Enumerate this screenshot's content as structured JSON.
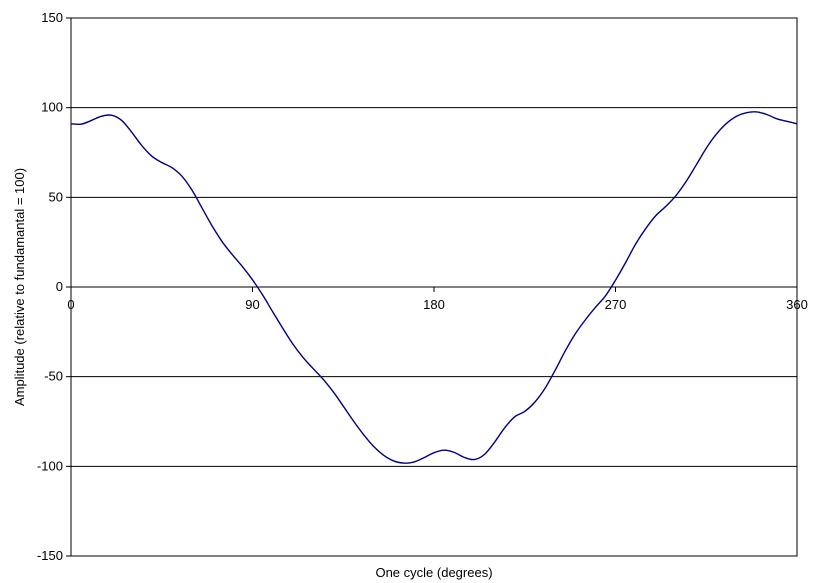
{
  "chart_data": {
    "type": "line",
    "title": "",
    "xlabel": "One cycle (degrees)",
    "ylabel": "Amplitude (relative to fundamantal = 100)",
    "xlim": [
      0,
      360
    ],
    "ylim": [
      -150,
      150
    ],
    "xticks": [
      0,
      90,
      180,
      270,
      360
    ],
    "yticks": [
      150,
      100,
      50,
      0,
      -50,
      -100,
      -150
    ],
    "grid": "horizontal",
    "legend": "none",
    "series": [
      {
        "color": "#000080",
        "x": [
          0,
          5,
          10,
          15,
          20,
          25,
          30,
          35,
          40,
          45,
          50,
          55,
          60,
          65,
          70,
          75,
          80,
          85,
          90,
          95,
          100,
          105,
          110,
          115,
          120,
          125,
          130,
          135,
          140,
          145,
          150,
          155,
          160,
          165,
          170,
          175,
          180,
          185,
          190,
          195,
          200,
          205,
          210,
          215,
          220,
          225,
          230,
          235,
          240,
          245,
          250,
          255,
          260,
          265,
          270,
          275,
          280,
          285,
          290,
          295,
          300,
          305,
          310,
          315,
          320,
          325,
          330,
          335,
          340,
          345,
          350,
          355,
          360
        ],
        "y": [
          91,
          90.8,
          92.8,
          95.2,
          95.8,
          93,
          86.5,
          79,
          73,
          69.4,
          66.6,
          61.8,
          54,
          44,
          34,
          25.2,
          18,
          11.4,
          4,
          -4.4,
          -13.8,
          -23,
          -31.8,
          -39.2,
          -45.4,
          -51.4,
          -58.4,
          -66.4,
          -74.6,
          -82.2,
          -88.8,
          -93.8,
          -97,
          -98.2,
          -97.6,
          -95.2,
          -92.4,
          -91,
          -92.2,
          -95,
          -96.2,
          -93.4,
          -86.6,
          -78.6,
          -72.4,
          -69.4,
          -64.2,
          -56.6,
          -46.6,
          -35.8,
          -26.2,
          -18.4,
          -11.4,
          -5,
          3.8,
          13.6,
          24,
          32.6,
          39.8,
          45,
          51,
          58.8,
          68,
          77.4,
          85.2,
          91.2,
          95.2,
          97.2,
          97.6,
          96.2,
          93.8,
          92.4,
          91
        ]
      }
    ]
  }
}
